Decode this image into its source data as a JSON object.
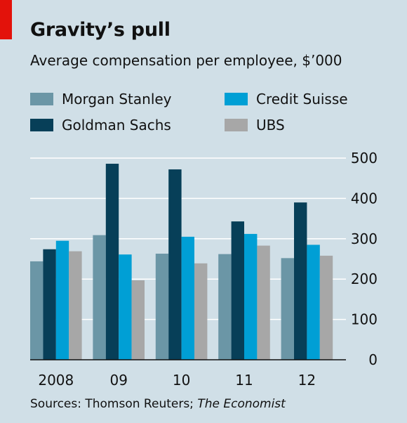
{
  "title": "Gravity’s pull",
  "subtitle": "Average compensation per employee, $’000",
  "source_prefix": "Sources: Thomson Reuters; ",
  "source_italic": "The Economist",
  "colors": {
    "background": "#d0dfe7",
    "red_tag": "#e3120b",
    "grid": "#ffffff",
    "axis": "#111111"
  },
  "chart_data": {
    "type": "bar",
    "title": "Gravity’s pull",
    "subtitle": "Average compensation per employee, $’000",
    "categories": [
      "2008",
      "09",
      "10",
      "11",
      "12"
    ],
    "series": [
      {
        "name": "Morgan Stanley",
        "color": "#6b96a6",
        "values": [
          244,
          309,
          263,
          262,
          252
        ]
      },
      {
        "name": "Goldman Sachs",
        "color": "#073f58",
        "values": [
          274,
          486,
          472,
          343,
          390
        ]
      },
      {
        "name": "Credit Suisse",
        "color": "#009fd5",
        "values": [
          295,
          261,
          305,
          312,
          285
        ]
      },
      {
        "name": "UBS",
        "color": "#a7a7a7",
        "values": [
          269,
          197,
          239,
          283,
          258
        ]
      }
    ],
    "ylim": [
      0,
      500
    ],
    "yticks": [
      0,
      100,
      200,
      300,
      400,
      500
    ],
    "grid": true,
    "y_axis_side": "right",
    "legend_position": "top"
  }
}
